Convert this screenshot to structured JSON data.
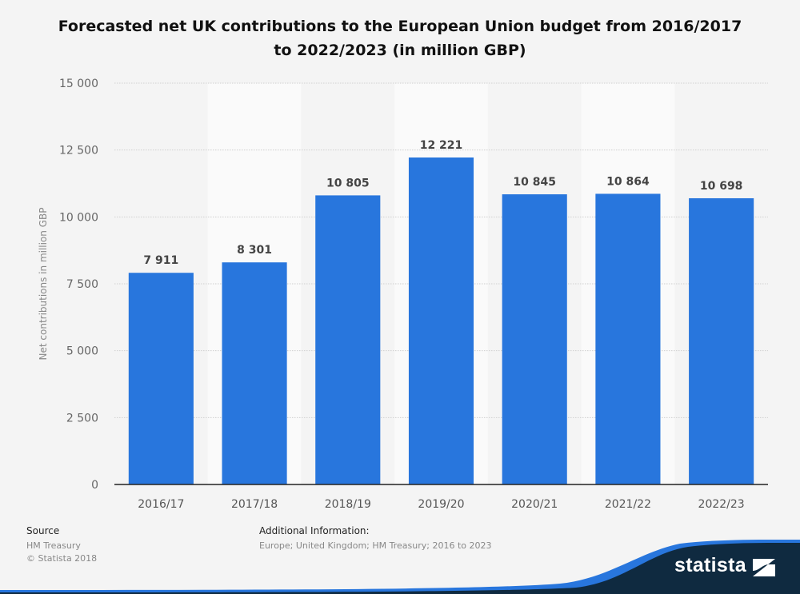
{
  "chart_data": {
    "type": "bar",
    "title": "Forecasted net UK contributions to the European Union budget from 2016/2017 to 2022/2023 (in million GBP)",
    "title_lines": [
      "Forecasted net UK contributions to the European Union budget from 2016/2017",
      "to 2022/2023 (in million GBP)"
    ],
    "categories": [
      "2016/17",
      "2017/18",
      "2018/19",
      "2019/20",
      "2020/21",
      "2021/22",
      "2022/23"
    ],
    "values": [
      7911,
      8301,
      10805,
      12221,
      10845,
      10864,
      10698
    ],
    "value_labels": [
      "7 911",
      "8 301",
      "10 805",
      "12 221",
      "10 845",
      "10 864",
      "10 698"
    ],
    "xlabel": "",
    "ylabel": "Net contributions in million GBP",
    "ylim": [
      0,
      15000
    ],
    "yticks": [
      0,
      2500,
      5000,
      7500,
      10000,
      12500,
      15000
    ],
    "ytick_labels": [
      "0",
      "2 500",
      "5 000",
      "7 500",
      "10 000",
      "12 500",
      "15 000"
    ],
    "grid": true,
    "legend": "none",
    "bar_color": "#2876dd"
  },
  "footer": {
    "source_heading": "Source",
    "source_lines": [
      "HM Treasury",
      "© Statista 2018"
    ],
    "info_heading": "Additional Information:",
    "info_text": "Europe; United Kingdom; HM Treasury; 2016 to 2023"
  },
  "brand": {
    "logo_text": "statista",
    "dark_color": "#0f2a40",
    "accent_color": "#2876dd"
  }
}
